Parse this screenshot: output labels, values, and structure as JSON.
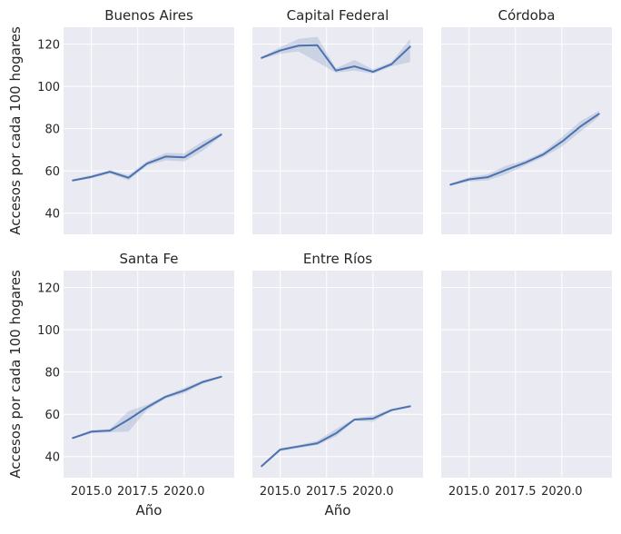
{
  "figure": {
    "ylabel": "Accesos por cada 100 hogares",
    "xlabel": "Año"
  },
  "colors": {
    "line": "#4c72b0",
    "band": "#4c72b0",
    "panel_bg": "#eaeaf2",
    "grid": "#ffffff",
    "text": "#262626"
  },
  "chart_data": [
    {
      "type": "line",
      "title": "Buenos Aires",
      "x": [
        2014,
        2015,
        2016,
        2017,
        2018,
        2019,
        2020,
        2021,
        2022
      ],
      "y": [
        55.5,
        57.2,
        59.6,
        56.8,
        63.5,
        66.8,
        66.4,
        71.8,
        77.2
      ],
      "y_low": [
        55.0,
        56.5,
        58.8,
        55.5,
        62.5,
        65.0,
        64.5,
        69.5,
        76.5
      ],
      "y_high": [
        56.0,
        58.0,
        60.4,
        58.0,
        64.5,
        68.5,
        68.3,
        74.0,
        78.0
      ],
      "xlim": [
        2013.5,
        2022.7
      ],
      "ylim": [
        30,
        128
      ],
      "xticks": [],
      "yticks": [
        40,
        60,
        80,
        100,
        120
      ],
      "xlabel": "",
      "ylabel": "Accesos por cada 100 hogares"
    },
    {
      "type": "line",
      "title": "Capital Federal",
      "x": [
        2014,
        2015,
        2016,
        2017,
        2018,
        2019,
        2020,
        2021,
        2022
      ],
      "y": [
        113.5,
        117.0,
        119.3,
        119.5,
        107.5,
        109.5,
        106.9,
        110.5,
        118.8
      ],
      "y_low": [
        113.0,
        115.5,
        116.5,
        111.5,
        106.5,
        107.5,
        106.0,
        109.5,
        111.5
      ],
      "y_high": [
        114.0,
        118.5,
        122.5,
        123.5,
        108.5,
        112.5,
        108.0,
        111.5,
        122.5
      ],
      "xlim": [
        2013.5,
        2022.7
      ],
      "ylim": [
        30,
        128
      ],
      "xticks": [],
      "yticks": [],
      "xlabel": "",
      "ylabel": ""
    },
    {
      "type": "line",
      "title": "Córdoba",
      "x": [
        2014,
        2015,
        2016,
        2017,
        2018,
        2019,
        2020,
        2021,
        2022
      ],
      "y": [
        53.5,
        56.0,
        57.0,
        60.5,
        63.8,
        67.8,
        73.8,
        81.0,
        87.0
      ],
      "y_low": [
        53.0,
        55.0,
        55.5,
        58.5,
        62.5,
        66.5,
        71.5,
        78.5,
        85.5
      ],
      "y_high": [
        54.0,
        57.0,
        58.5,
        62.5,
        65.0,
        69.0,
        76.0,
        83.5,
        88.5
      ],
      "xlim": [
        2013.5,
        2022.7
      ],
      "ylim": [
        30,
        128
      ],
      "xticks": [],
      "yticks": [],
      "xlabel": "",
      "ylabel": ""
    },
    {
      "type": "line",
      "title": "Santa Fe",
      "x": [
        2014,
        2015,
        2016,
        2017,
        2018,
        2019,
        2020,
        2021,
        2022
      ],
      "y": [
        48.8,
        51.8,
        52.3,
        57.5,
        63.3,
        68.3,
        71.3,
        75.3,
        77.8
      ],
      "y_low": [
        48.3,
        51.0,
        51.5,
        51.8,
        62.0,
        67.5,
        70.0,
        74.5,
        77.3
      ],
      "y_high": [
        49.3,
        52.5,
        53.0,
        61.5,
        64.5,
        69.0,
        72.5,
        76.0,
        78.3
      ],
      "xlim": [
        2013.5,
        2022.7
      ],
      "ylim": [
        30,
        128
      ],
      "xticks": [
        "2015.0",
        "2017.5",
        "2020.0"
      ],
      "yticks": [
        40,
        60,
        80,
        100,
        120
      ],
      "xlabel": "Año",
      "ylabel": "Accesos por cada 100 hogares"
    },
    {
      "type": "line",
      "title": "Entre Ríos",
      "x": [
        2014,
        2015,
        2016,
        2017,
        2018,
        2019,
        2020,
        2021,
        2022
      ],
      "y": [
        35.5,
        43.3,
        44.8,
        46.3,
        51.0,
        57.5,
        58.0,
        62.0,
        63.8
      ],
      "y_low": [
        35.0,
        42.5,
        44.0,
        45.5,
        49.5,
        57.0,
        56.5,
        61.5,
        63.3
      ],
      "y_high": [
        36.0,
        44.0,
        45.5,
        47.5,
        53.0,
        58.0,
        59.5,
        62.5,
        64.3
      ],
      "xlim": [
        2013.5,
        2022.7
      ],
      "ylim": [
        30,
        128
      ],
      "xticks": [
        "2015.0",
        "2017.5",
        "2020.0"
      ],
      "yticks": [],
      "xlabel": "Año",
      "ylabel": ""
    },
    {
      "type": "line",
      "title": "",
      "x": [],
      "y": [],
      "y_low": [],
      "y_high": [],
      "xlim": [
        2013.5,
        2022.7
      ],
      "ylim": [
        30,
        128
      ],
      "xticks": [
        "2015.0",
        "2017.5",
        "2020.0"
      ],
      "yticks": [],
      "xlabel": "",
      "ylabel": ""
    }
  ]
}
